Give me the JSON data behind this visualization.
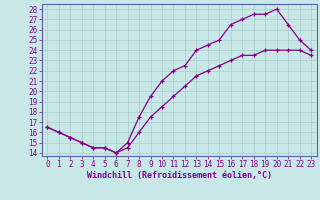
{
  "xlabel": "Windchill (Refroidissement éolien,°C)",
  "bg_color": "#c8e8e8",
  "line_color": "#880088",
  "upper_line_x": [
    0,
    1,
    2,
    3,
    4,
    5,
    6,
    7,
    8,
    9,
    10,
    11,
    12,
    13,
    14,
    15,
    16,
    17,
    18,
    19,
    20,
    21,
    22,
    23
  ],
  "upper_line_y": [
    16.5,
    16.0,
    15.5,
    15.0,
    14.5,
    14.5,
    14.0,
    15.0,
    17.5,
    19.5,
    21.0,
    22.0,
    22.5,
    24.0,
    24.5,
    25.0,
    26.5,
    27.0,
    27.5,
    27.5,
    28.0,
    26.5,
    25.0,
    24.0
  ],
  "lower_line_x": [
    0,
    1,
    2,
    3,
    4,
    5,
    6,
    7,
    8,
    9,
    10,
    11,
    12,
    13,
    14,
    15,
    16,
    17,
    18,
    19,
    20,
    21,
    22,
    23
  ],
  "lower_line_y": [
    16.5,
    16.0,
    15.5,
    15.0,
    14.5,
    14.5,
    14.0,
    14.5,
    16.0,
    17.5,
    18.5,
    19.5,
    20.5,
    21.5,
    22.0,
    22.5,
    23.0,
    23.5,
    23.5,
    24.0,
    24.0,
    24.0,
    24.0,
    23.5
  ],
  "xlim": [
    -0.5,
    23.5
  ],
  "ylim": [
    13.7,
    28.5
  ],
  "yticks": [
    14,
    15,
    16,
    17,
    18,
    19,
    20,
    21,
    22,
    23,
    24,
    25,
    26,
    27,
    28
  ],
  "xticks": [
    0,
    1,
    2,
    3,
    4,
    5,
    6,
    7,
    8,
    9,
    10,
    11,
    12,
    13,
    14,
    15,
    16,
    17,
    18,
    19,
    20,
    21,
    22,
    23
  ],
  "tick_fontsize": 5.5,
  "label_fontsize": 6.0,
  "grid_color": "#aacccc",
  "spine_color": "#6060a0"
}
